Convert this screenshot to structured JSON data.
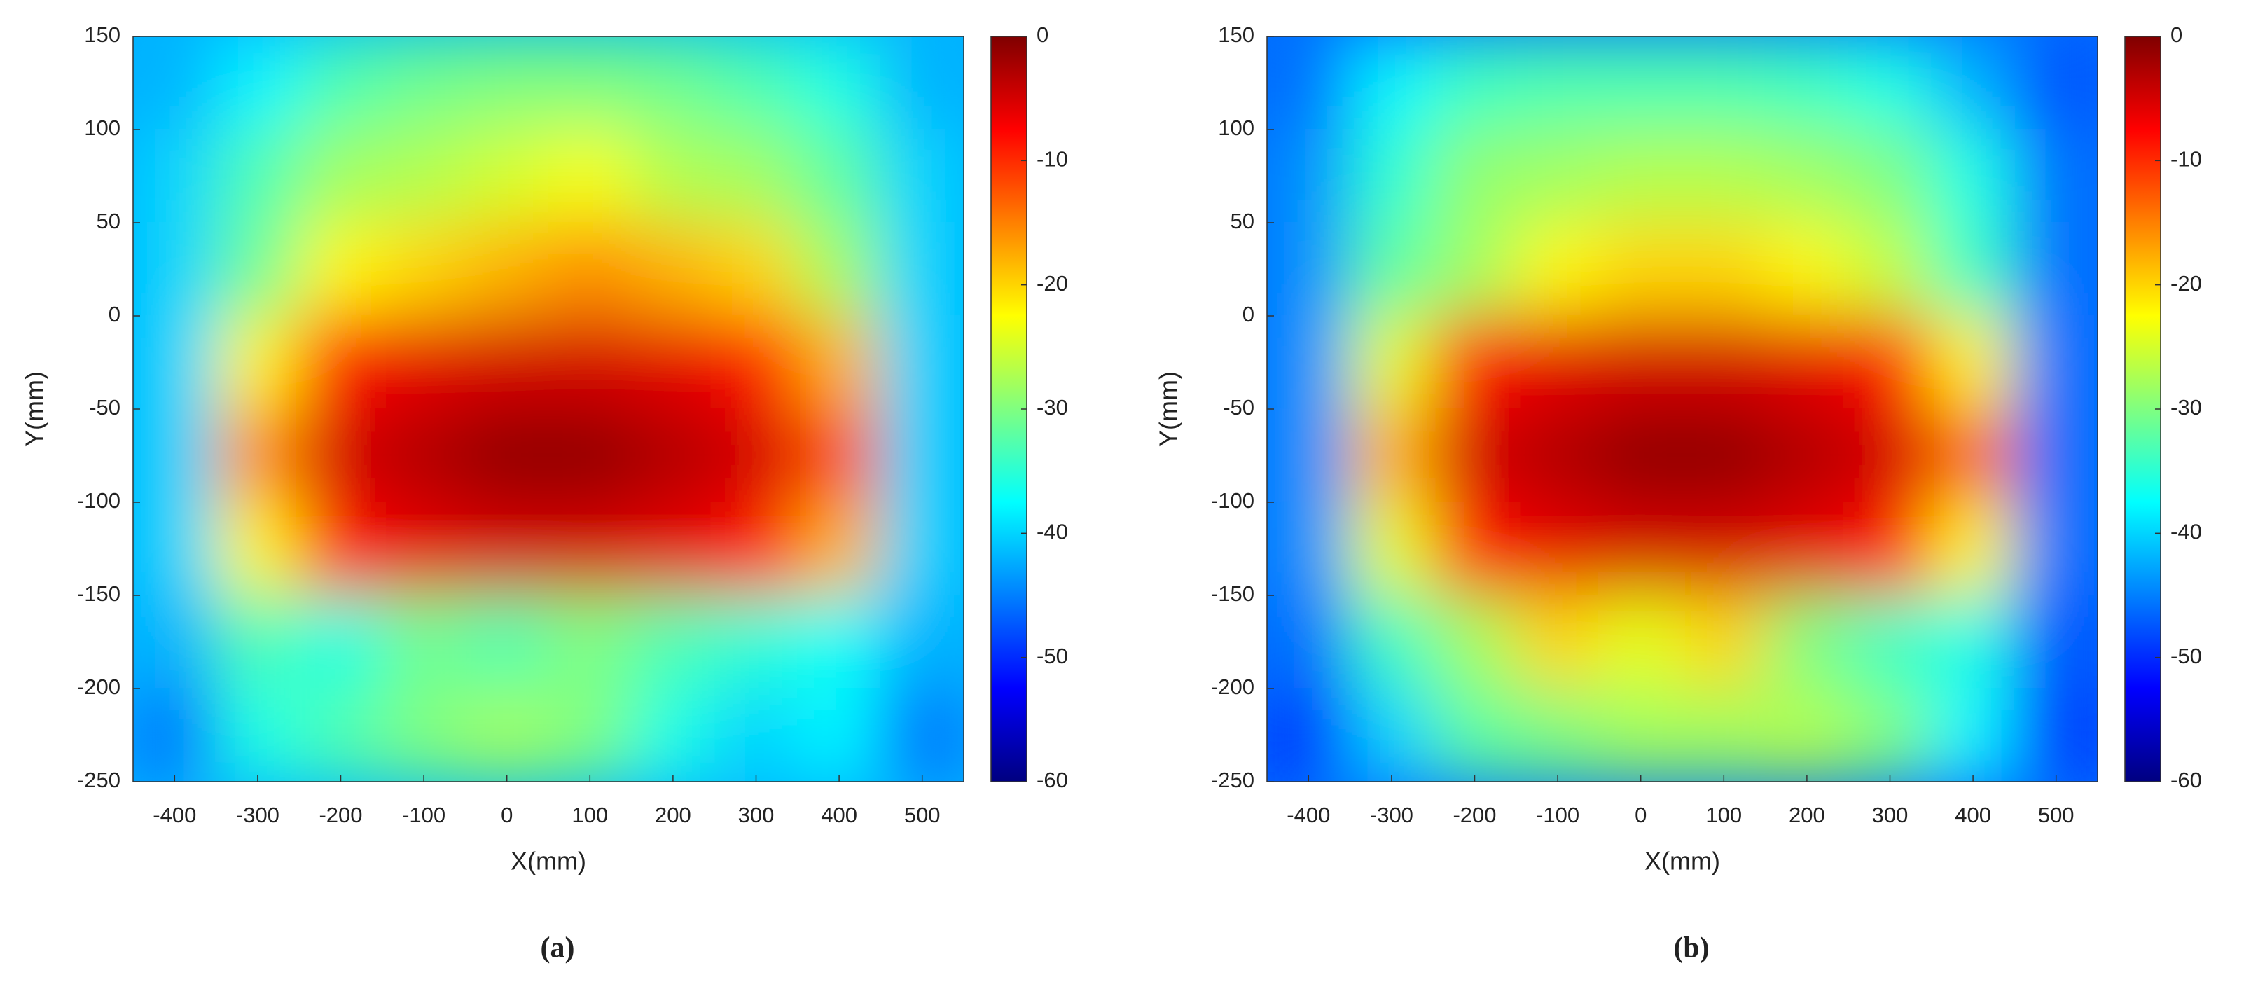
{
  "chart_data": [
    {
      "type": "heatmap",
      "caption": "(a)",
      "xlabel": "X(mm)",
      "ylabel": "Y(mm)",
      "colormap": "jet",
      "xlim": [
        -450,
        550
      ],
      "xticks": [
        -400,
        -300,
        -200,
        -100,
        0,
        100,
        200,
        300,
        400,
        500
      ],
      "ylim": [
        -250,
        150
      ],
      "yticks": [
        150,
        100,
        50,
        0,
        -50,
        -100,
        -150,
        -200,
        -250
      ],
      "clim": [
        -60,
        0
      ],
      "cticks": [
        0,
        -10,
        -20,
        -30,
        -40,
        -50,
        -60
      ],
      "x": [
        -400,
        -300,
        -200,
        -100,
        0,
        100,
        200,
        300,
        400,
        500
      ],
      "y": [
        125,
        75,
        25,
        -25,
        -75,
        -125,
        -175,
        -225
      ],
      "z": [
        [
          -42,
          -38,
          -33,
          -31,
          -30,
          -30,
          -31,
          -33,
          -36,
          -42
        ],
        [
          -40,
          -33,
          -28,
          -27,
          -25,
          -23,
          -27,
          -28,
          -32,
          -40
        ],
        [
          -40,
          -31,
          -22,
          -20,
          -18,
          -16,
          -18,
          -20,
          -28,
          -40
        ],
        [
          -40,
          -22,
          -8,
          -6,
          -5,
          -5,
          -6,
          -8,
          -18,
          -40
        ],
        [
          -40,
          -16,
          -5,
          -3,
          -1,
          -1,
          -3,
          -5,
          -12,
          -40
        ],
        [
          -40,
          -22,
          -8,
          -6,
          -5,
          -5,
          -6,
          -8,
          -18,
          -40
        ],
        [
          -42,
          -33,
          -36,
          -31,
          -33,
          -30,
          -33,
          -35,
          -37,
          -42
        ],
        [
          -46,
          -36,
          -33,
          -30,
          -28,
          -30,
          -36,
          -40,
          -38,
          -46
        ]
      ]
    },
    {
      "type": "heatmap",
      "caption": "(b)",
      "xlabel": "X(mm)",
      "ylabel": "Y(mm)",
      "colormap": "jet",
      "xlim": [
        -450,
        550
      ],
      "xticks": [
        -400,
        -300,
        -200,
        -100,
        0,
        100,
        200,
        300,
        400,
        500
      ],
      "ylim": [
        -250,
        150
      ],
      "yticks": [
        150,
        100,
        50,
        0,
        -50,
        -100,
        -150,
        -200,
        -250
      ],
      "clim": [
        -60,
        0
      ],
      "cticks": [
        0,
        -10,
        -20,
        -30,
        -40,
        -50,
        -60
      ],
      "x": [
        -400,
        -300,
        -200,
        -100,
        0,
        100,
        200,
        300,
        400,
        500
      ],
      "y": [
        125,
        75,
        25,
        -25,
        -75,
        -125,
        -175,
        -225
      ],
      "z": [
        [
          -46,
          -38,
          -34,
          -33,
          -33,
          -33,
          -34,
          -36,
          -42,
          -48
        ],
        [
          -44,
          -35,
          -29,
          -28,
          -27,
          -27,
          -28,
          -30,
          -36,
          -46
        ],
        [
          -44,
          -32,
          -28,
          -22,
          -20,
          -20,
          -22,
          -26,
          -34,
          -46
        ],
        [
          -44,
          -24,
          -8,
          -6,
          -5,
          -5,
          -6,
          -8,
          -22,
          -46
        ],
        [
          -44,
          -18,
          -5,
          -3,
          -1,
          -1,
          -3,
          -5,
          -14,
          -46
        ],
        [
          -44,
          -24,
          -8,
          -6,
          -5,
          -5,
          -6,
          -8,
          -22,
          -46
        ],
        [
          -46,
          -34,
          -28,
          -20,
          -24,
          -20,
          -30,
          -34,
          -36,
          -48
        ],
        [
          -50,
          -40,
          -32,
          -30,
          -28,
          -28,
          -27,
          -30,
          -38,
          -50
        ]
      ]
    }
  ]
}
